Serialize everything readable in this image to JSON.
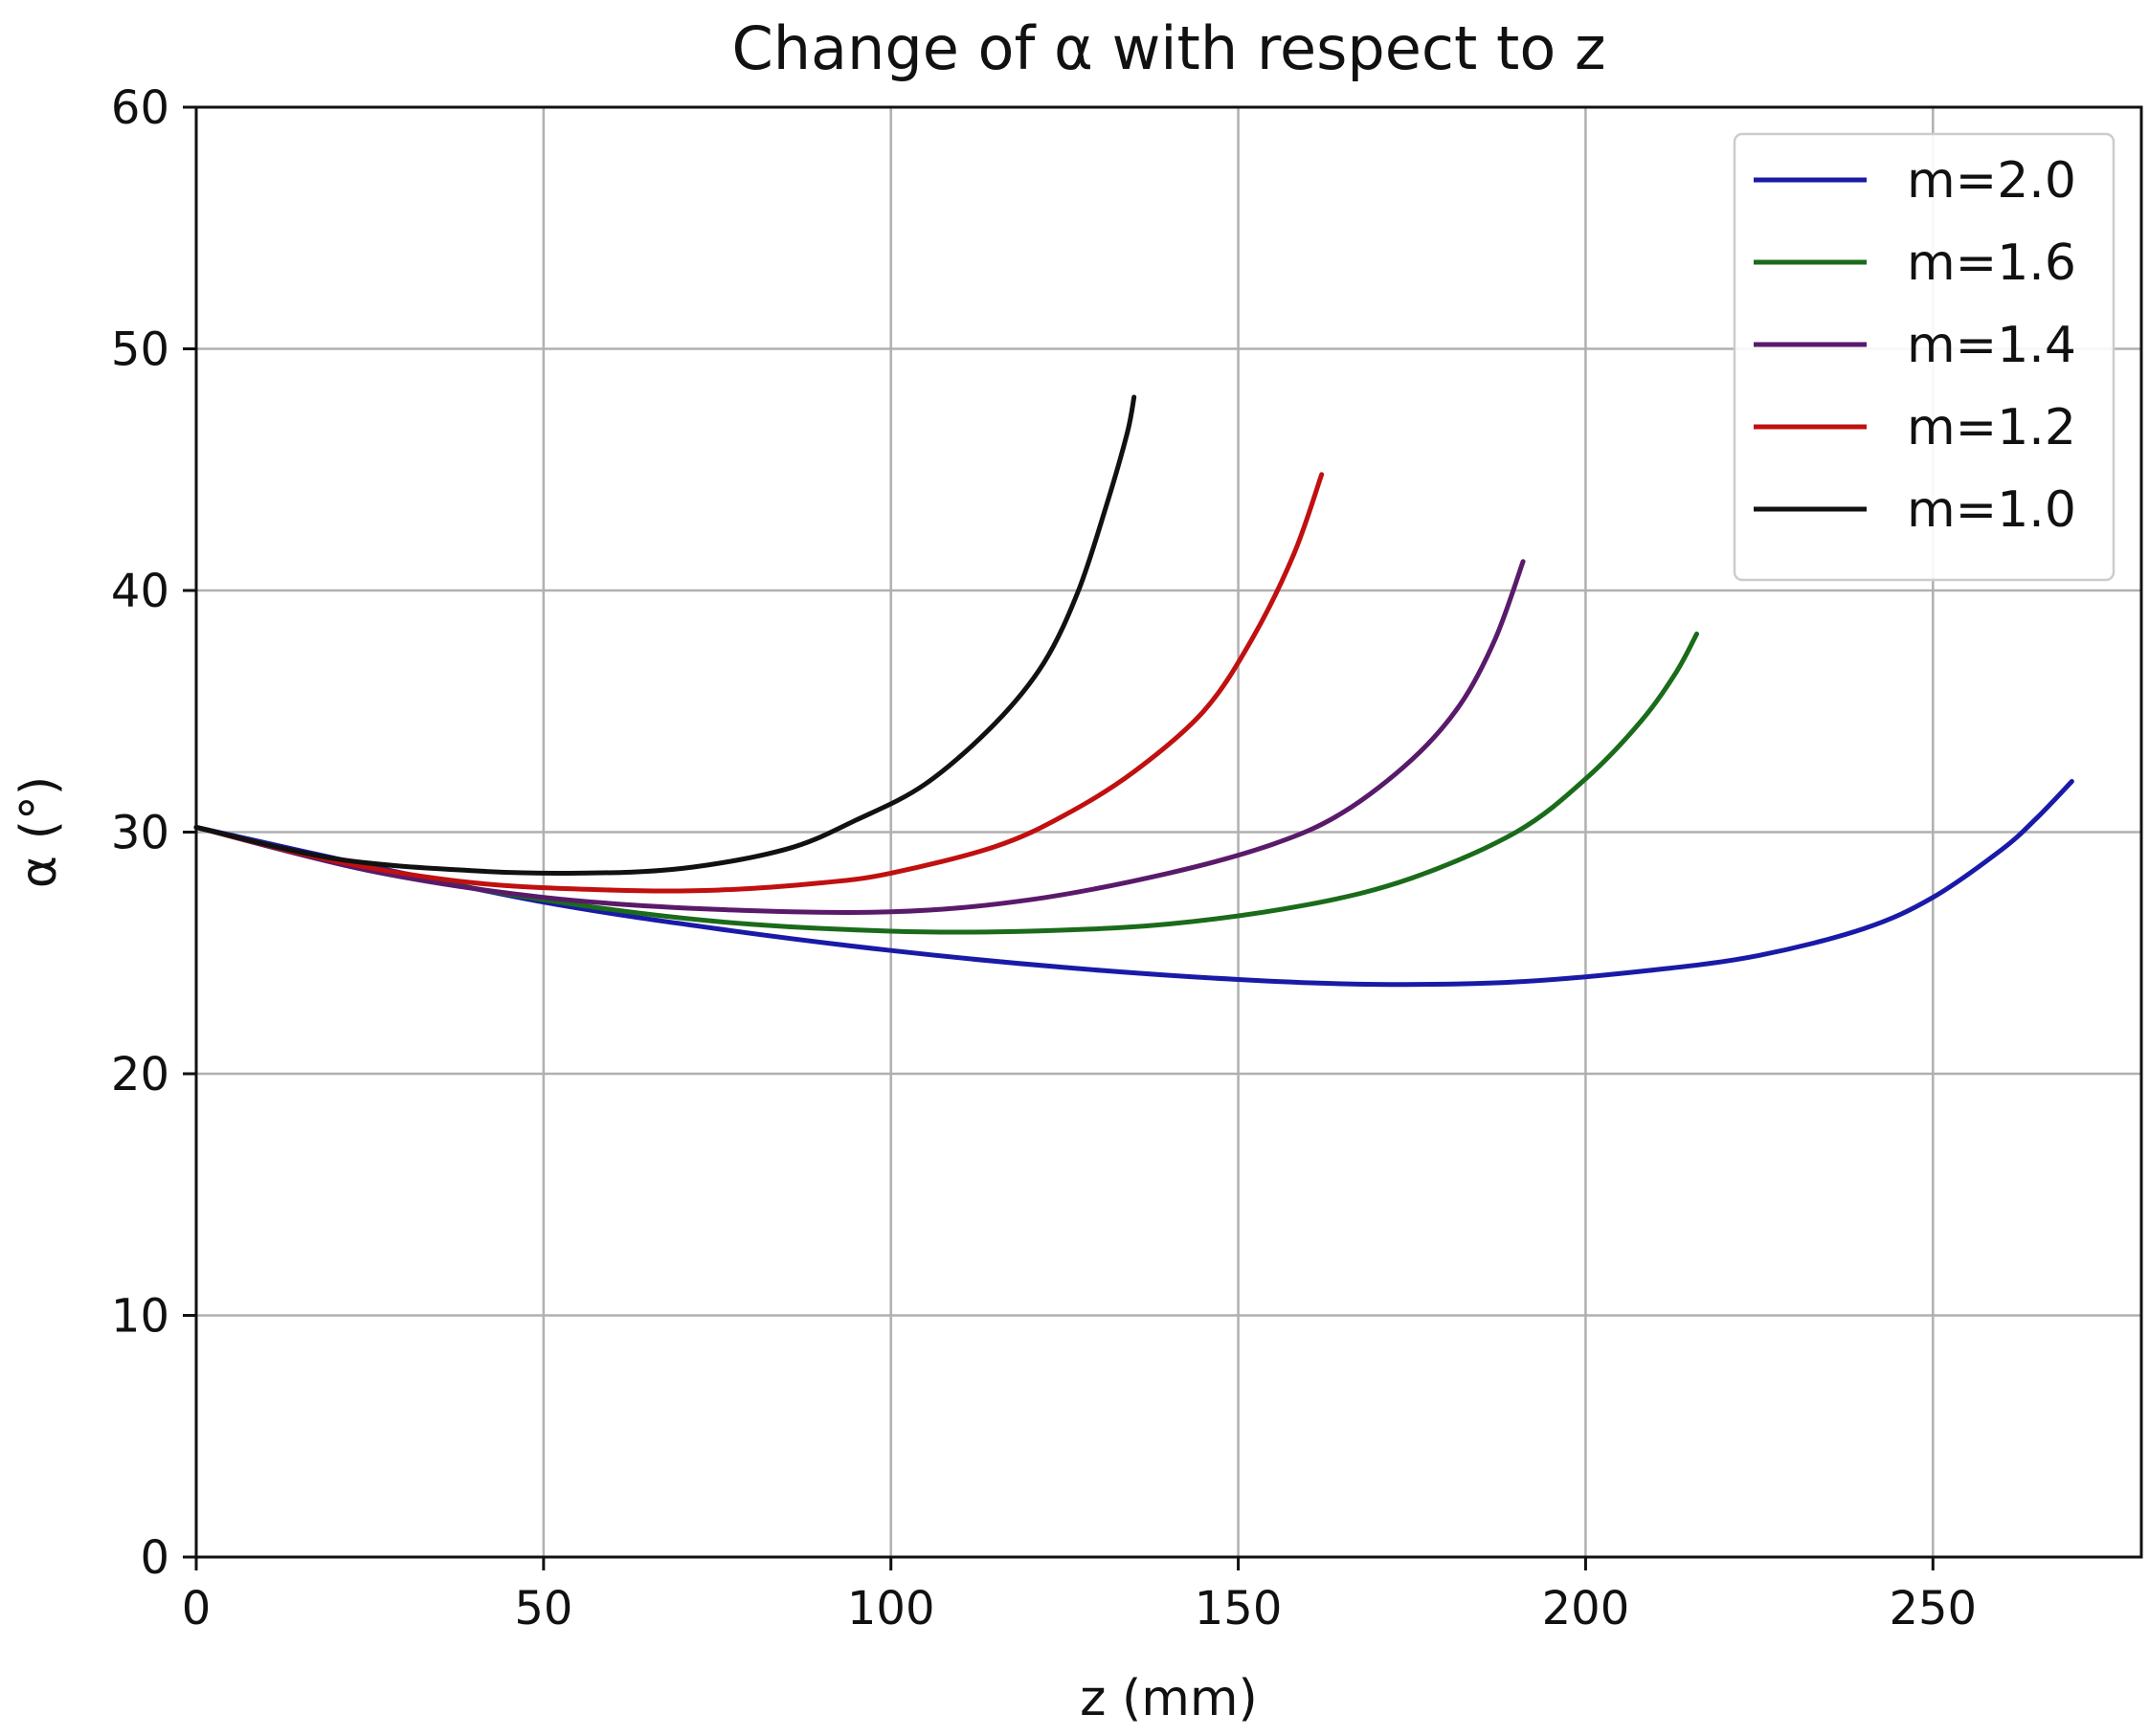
{
  "chart_data": {
    "type": "line",
    "title": "Change of α with respect to z",
    "xlabel": "z (mm)",
    "ylabel": "α (°)",
    "xlim": [
      0,
      280
    ],
    "ylim": [
      0,
      60
    ],
    "xticks": [
      0,
      50,
      100,
      150,
      200,
      250
    ],
    "yticks": [
      0,
      10,
      20,
      30,
      40,
      50,
      60
    ],
    "grid": true,
    "legend_position": "top-right",
    "series": [
      {
        "name": "m=2.0",
        "color": "#1a1aa8",
        "points": [
          [
            0,
            30.2
          ],
          [
            25,
            28.6
          ],
          [
            50,
            27.1
          ],
          [
            75,
            26.0
          ],
          [
            100,
            25.1
          ],
          [
            125,
            24.4
          ],
          [
            150,
            23.9
          ],
          [
            170,
            23.7
          ],
          [
            190,
            23.8
          ],
          [
            210,
            24.3
          ],
          [
            225,
            24.9
          ],
          [
            240,
            26.0
          ],
          [
            250,
            27.3
          ],
          [
            260,
            29.3
          ],
          [
            265,
            30.6
          ],
          [
            270,
            32.1
          ]
        ]
      },
      {
        "name": "m=1.6",
        "color": "#1a6b1a",
        "points": [
          [
            0,
            30.2
          ],
          [
            25,
            28.5
          ],
          [
            50,
            27.2
          ],
          [
            75,
            26.3
          ],
          [
            100,
            25.9
          ],
          [
            120,
            25.9
          ],
          [
            140,
            26.2
          ],
          [
            160,
            27.0
          ],
          [
            175,
            28.1
          ],
          [
            190,
            30.0
          ],
          [
            200,
            32.2
          ],
          [
            208,
            34.6
          ],
          [
            213,
            36.6
          ],
          [
            216,
            38.2
          ]
        ]
      },
      {
        "name": "m=1.4",
        "color": "#5a1a6b",
        "points": [
          [
            0,
            30.2
          ],
          [
            25,
            28.4
          ],
          [
            50,
            27.3
          ],
          [
            75,
            26.8
          ],
          [
            100,
            26.7
          ],
          [
            120,
            27.2
          ],
          [
            140,
            28.3
          ],
          [
            155,
            29.5
          ],
          [
            165,
            30.8
          ],
          [
            175,
            33.0
          ],
          [
            182,
            35.3
          ],
          [
            187,
            38.0
          ],
          [
            191,
            41.2
          ]
        ]
      },
      {
        "name": "m=1.2",
        "color": "#c01010",
        "points": [
          [
            0,
            30.2
          ],
          [
            20,
            28.8
          ],
          [
            40,
            27.9
          ],
          [
            60,
            27.6
          ],
          [
            75,
            27.6
          ],
          [
            90,
            27.9
          ],
          [
            100,
            28.3
          ],
          [
            115,
            29.4
          ],
          [
            125,
            30.7
          ],
          [
            135,
            32.5
          ],
          [
            145,
            35.0
          ],
          [
            152,
            38.0
          ],
          [
            158,
            41.5
          ],
          [
            162,
            44.8
          ]
        ]
      },
      {
        "name": "m=1.0",
        "color": "#111111",
        "points": [
          [
            0,
            30.2
          ],
          [
            20,
            28.9
          ],
          [
            40,
            28.4
          ],
          [
            55,
            28.3
          ],
          [
            70,
            28.5
          ],
          [
            85,
            29.3
          ],
          [
            95,
            30.5
          ],
          [
            105,
            32.0
          ],
          [
            115,
            34.5
          ],
          [
            122,
            37.0
          ],
          [
            127,
            40.0
          ],
          [
            131,
            43.5
          ],
          [
            134,
            46.5
          ],
          [
            135,
            48.0
          ]
        ]
      }
    ]
  }
}
